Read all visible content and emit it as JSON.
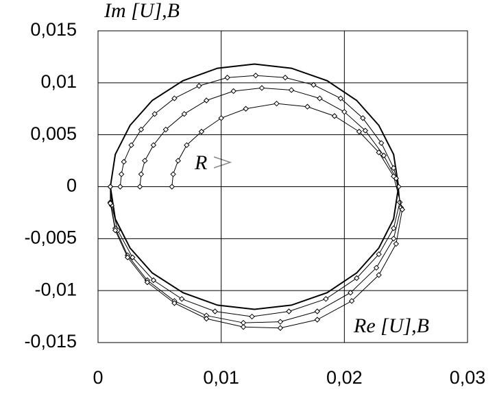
{
  "chart_data": {
    "type": "line",
    "y_label": "Im [U],B",
    "x_label": "Re [U],B",
    "annotation": "R",
    "xlim": [
      0,
      0.03
    ],
    "ylim": [
      -0.015,
      0.015
    ],
    "xticks": [
      0,
      {
        "value": 0.01,
        "label": "0,01"
      },
      {
        "value": 0.02,
        "label": "0,02"
      },
      {
        "value": 0.03,
        "label": "0,03"
      }
    ],
    "yticks": [
      {
        "value": -0.015,
        "label": "-0,015"
      },
      {
        "value": -0.01,
        "label": "-0,01"
      },
      {
        "value": -0.005,
        "label": "-0,005"
      },
      0,
      {
        "value": 0.005,
        "label": "0,005"
      },
      {
        "value": 0.01,
        "label": "0,01"
      },
      {
        "value": 0.015,
        "label": "0,015"
      }
    ],
    "grid": true,
    "series": [
      {
        "color": "#000000",
        "marker": "none",
        "x": [
          0.001,
          0.0014,
          0.0026,
          0.0044,
          0.0069,
          0.0097,
          0.0127,
          0.0157,
          0.0186,
          0.021,
          0.0228,
          0.024,
          0.0244,
          0.024,
          0.0228,
          0.021,
          0.0186,
          0.0157,
          0.0127,
          0.0097,
          0.0069,
          0.0044,
          0.0026,
          0.0014,
          0.001
        ],
        "y": [
          0,
          0.0031,
          0.0059,
          0.0083,
          0.0102,
          0.0114,
          0.0118,
          0.0114,
          0.0102,
          0.0083,
          0.0059,
          0.0031,
          0,
          -0.0031,
          -0.0059,
          -0.0083,
          -0.0102,
          -0.0114,
          -0.0118,
          -0.0114,
          -0.0102,
          -0.0083,
          -0.0059,
          -0.0031,
          0
        ]
      },
      {
        "color": "#000000",
        "marker": "diamond",
        "x": [
          0.0018,
          0.0019,
          0.0021,
          0.0027,
          0.0035,
          0.0046,
          0.0062,
          0.0082,
          0.0105,
          0.0128,
          0.0152,
          0.0175,
          0.0197,
          0.0215,
          0.023,
          0.024,
          0.0244,
          0.0245,
          0.024,
          0.0228,
          0.021,
          0.0185,
          0.0155,
          0.0125,
          0.0095,
          0.0068,
          0.0045,
          0.0028,
          0.0016,
          0.0011,
          0.001
        ],
        "y": [
          0,
          0.0012,
          0.0024,
          0.004,
          0.0055,
          0.007,
          0.0085,
          0.0097,
          0.0105,
          0.0107,
          0.0105,
          0.0098,
          0.0085,
          0.0066,
          0.0042,
          0.0018,
          0,
          -0.0015,
          -0.004,
          -0.0065,
          -0.0088,
          -0.0108,
          -0.012,
          -0.0125,
          -0.012,
          -0.0108,
          -0.009,
          -0.0068,
          -0.0042,
          -0.0018,
          0
        ]
      },
      {
        "color": "#000000",
        "marker": "diamond",
        "x": [
          0.0034,
          0.0035,
          0.0038,
          0.0045,
          0.0055,
          0.007,
          0.0088,
          0.011,
          0.0133,
          0.0157,
          0.018,
          0.02,
          0.0217,
          0.0232,
          0.0242,
          0.0246,
          0.024,
          0.0226,
          0.0205,
          0.0178,
          0.0148,
          0.0118,
          0.0088,
          0.0062,
          0.004,
          0.0024,
          0.0014,
          0.001,
          0.001
        ],
        "y": [
          0,
          0.0012,
          0.0025,
          0.004,
          0.0055,
          0.007,
          0.0083,
          0.0092,
          0.0095,
          0.0093,
          0.0085,
          0.0072,
          0.0054,
          0.003,
          0.0008,
          -0.002,
          -0.005,
          -0.0078,
          -0.0102,
          -0.012,
          -0.013,
          -0.0131,
          -0.0124,
          -0.011,
          -0.009,
          -0.0066,
          -0.004,
          -0.0015,
          0
        ]
      },
      {
        "color": "#000000",
        "marker": "diamond",
        "x": [
          0.006,
          0.0061,
          0.0065,
          0.0072,
          0.0084,
          0.01,
          0.012,
          0.0145,
          0.017,
          0.0192,
          0.0212,
          0.0228,
          0.024,
          0.0247,
          0.0242,
          0.0228,
          0.0206,
          0.0178,
          0.0148,
          0.0118,
          0.0088,
          0.0062,
          0.004,
          0.0024,
          0.0014,
          0.001,
          0.001
        ],
        "y": [
          0,
          0.0012,
          0.0025,
          0.004,
          0.0053,
          0.0066,
          0.0075,
          0.008,
          0.0077,
          0.0068,
          0.0053,
          0.0033,
          0.001,
          -0.0022,
          -0.0055,
          -0.0085,
          -0.011,
          -0.0128,
          -0.0136,
          -0.0135,
          -0.0127,
          -0.0112,
          -0.0092,
          -0.0068,
          -0.0042,
          -0.0016,
          0
        ]
      }
    ]
  }
}
